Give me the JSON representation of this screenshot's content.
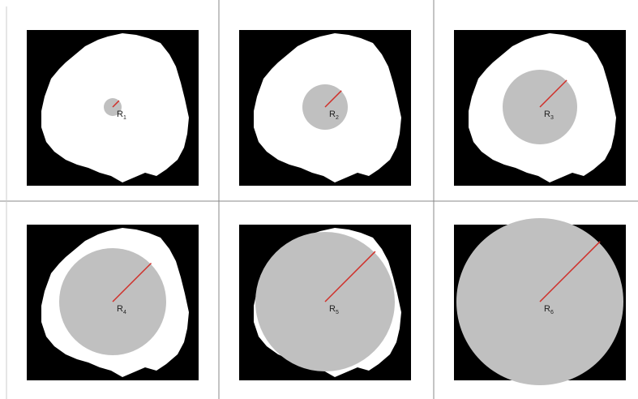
{
  "panels": [
    {
      "label": "R",
      "sub": "1"
    },
    {
      "label": "R",
      "sub": "2"
    },
    {
      "label": "R",
      "sub": "3"
    },
    {
      "label": "R",
      "sub": "4"
    },
    {
      "label": "R",
      "sub": "5"
    },
    {
      "label": "R",
      "sub": "6"
    }
  ]
}
